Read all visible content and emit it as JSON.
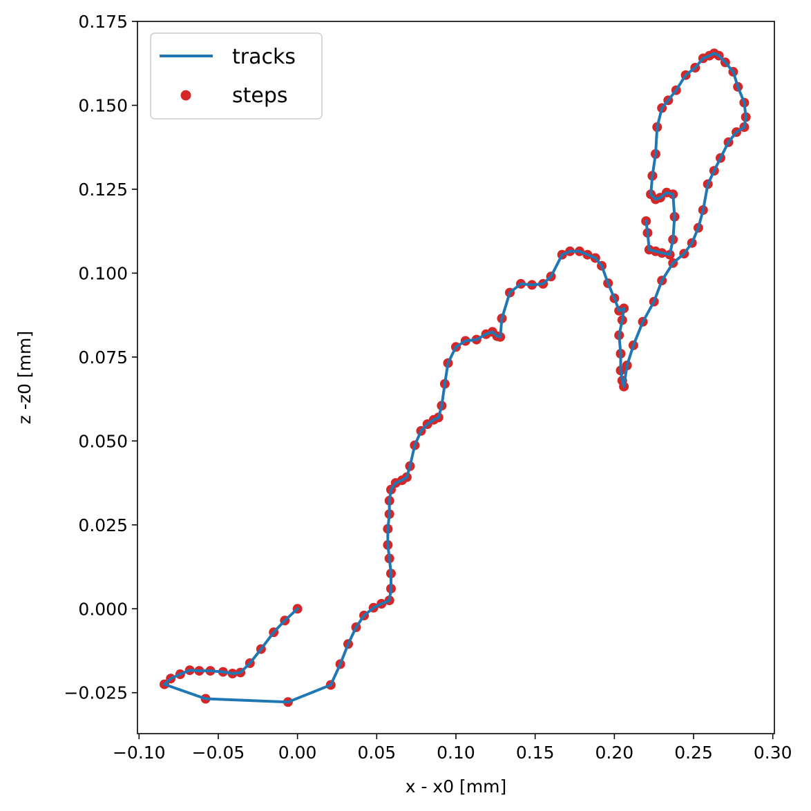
{
  "colors": {
    "track": "#1f77b4",
    "step": "#d62728",
    "axis": "#000000",
    "legend_border": "#cccccc"
  },
  "chart_data": {
    "type": "line",
    "title": "",
    "xlabel": "x - x0 [mm]",
    "ylabel": "z -z0 [mm]",
    "xlim": [
      -0.101,
      0.301
    ],
    "ylim": [
      -0.0372,
      0.175
    ],
    "xticks": [
      -0.1,
      -0.05,
      0.0,
      0.05,
      0.1,
      0.15,
      0.2,
      0.25,
      0.3
    ],
    "xtick_labels": [
      "−0.10",
      "−0.05",
      "0.00",
      "0.05",
      "0.10",
      "0.15",
      "0.20",
      "0.25",
      "0.30"
    ],
    "yticks": [
      -0.025,
      0.0,
      0.025,
      0.05,
      0.075,
      0.1,
      0.125,
      0.15,
      0.175
    ],
    "ytick_labels": [
      "−0.025",
      "0.000",
      "0.025",
      "0.050",
      "0.075",
      "0.100",
      "0.125",
      "0.150",
      "0.175"
    ],
    "grid": false,
    "legend": {
      "position": "top-left",
      "entries": [
        {
          "label": "tracks",
          "kind": "line"
        },
        {
          "label": "steps",
          "kind": "marker"
        }
      ]
    },
    "series": [
      {
        "name": "tracks",
        "kind": "line",
        "points": [
          [
            0.0,
            0.0
          ],
          [
            -0.008,
            -0.0035
          ],
          [
            -0.015,
            -0.007
          ],
          [
            -0.023,
            -0.012
          ],
          [
            -0.03,
            -0.0162
          ],
          [
            -0.036,
            -0.019
          ],
          [
            -0.041,
            -0.0193
          ],
          [
            -0.047,
            -0.0188
          ],
          [
            -0.055,
            -0.0185
          ],
          [
            -0.062,
            -0.0185
          ],
          [
            -0.068,
            -0.0183
          ],
          [
            -0.074,
            -0.0195
          ],
          [
            -0.08,
            -0.0208
          ],
          [
            -0.084,
            -0.0225
          ],
          [
            -0.058,
            -0.0268
          ],
          [
            -0.006,
            -0.0278
          ],
          [
            0.021,
            -0.0227
          ],
          [
            0.027,
            -0.0165
          ],
          [
            0.032,
            -0.0105
          ],
          [
            0.037,
            -0.0055
          ],
          [
            0.042,
            -0.002
          ],
          [
            0.048,
            0.0003
          ],
          [
            0.053,
            0.0015
          ],
          [
            0.058,
            0.0025
          ],
          [
            0.059,
            0.006
          ],
          [
            0.059,
            0.0105
          ],
          [
            0.058,
            0.015
          ],
          [
            0.057,
            0.019
          ],
          [
            0.057,
            0.0238
          ],
          [
            0.058,
            0.0282
          ],
          [
            0.058,
            0.0322
          ],
          [
            0.059,
            0.0355
          ],
          [
            0.062,
            0.0375
          ],
          [
            0.066,
            0.0383
          ],
          [
            0.069,
            0.0392
          ],
          [
            0.071,
            0.0425
          ],
          [
            0.074,
            0.0487
          ],
          [
            0.078,
            0.053
          ],
          [
            0.082,
            0.055
          ],
          [
            0.086,
            0.0563
          ],
          [
            0.089,
            0.057
          ],
          [
            0.091,
            0.0605
          ],
          [
            0.093,
            0.067
          ],
          [
            0.095,
            0.0732
          ],
          [
            0.1,
            0.078
          ],
          [
            0.106,
            0.0798
          ],
          [
            0.113,
            0.0802
          ],
          [
            0.119,
            0.0818
          ],
          [
            0.123,
            0.0825
          ],
          [
            0.126,
            0.0812
          ],
          [
            0.128,
            0.081
          ],
          [
            0.129,
            0.0865
          ],
          [
            0.134,
            0.0942
          ],
          [
            0.141,
            0.0968
          ],
          [
            0.148,
            0.0965
          ],
          [
            0.155,
            0.0968
          ],
          [
            0.16,
            0.099
          ],
          [
            0.167,
            0.1055
          ],
          [
            0.172,
            0.1065
          ],
          [
            0.178,
            0.1065
          ],
          [
            0.183,
            0.1055
          ],
          [
            0.188,
            0.1045
          ],
          [
            0.192,
            0.1022
          ],
          [
            0.196,
            0.097
          ],
          [
            0.2,
            0.0925
          ],
          [
            0.203,
            0.0888
          ],
          [
            0.206,
            0.0895
          ],
          [
            0.205,
            0.086
          ],
          [
            0.203,
            0.0815
          ],
          [
            0.204,
            0.076
          ],
          [
            0.204,
            0.071
          ],
          [
            0.205,
            0.068
          ],
          [
            0.206,
            0.0662
          ],
          [
            0.208,
            0.0725
          ],
          [
            0.212,
            0.0785
          ],
          [
            0.218,
            0.0855
          ],
          [
            0.225,
            0.0915
          ],
          [
            0.23,
            0.0978
          ],
          [
            0.237,
            0.103
          ],
          [
            0.244,
            0.1058
          ],
          [
            0.249,
            0.109
          ],
          [
            0.253,
            0.1135
          ],
          [
            0.256,
            0.1188
          ],
          [
            0.259,
            0.1265
          ],
          [
            0.263,
            0.1305
          ],
          [
            0.267,
            0.1343
          ],
          [
            0.272,
            0.139
          ],
          [
            0.277,
            0.142
          ],
          [
            0.282,
            0.1435
          ],
          [
            0.283,
            0.1465
          ],
          [
            0.282,
            0.1508
          ],
          [
            0.278,
            0.1555
          ],
          [
            0.275,
            0.16
          ],
          [
            0.27,
            0.1628
          ],
          [
            0.266,
            0.1648
          ],
          [
            0.263,
            0.1655
          ],
          [
            0.26,
            0.1648
          ],
          [
            0.256,
            0.164
          ],
          [
            0.251,
            0.1612
          ],
          [
            0.245,
            0.159
          ],
          [
            0.239,
            0.1545
          ],
          [
            0.234,
            0.1515
          ],
          [
            0.23,
            0.1492
          ],
          [
            0.227,
            0.1435
          ],
          [
            0.226,
            0.1355
          ],
          [
            0.224,
            0.129
          ],
          [
            0.223,
            0.1235
          ],
          [
            0.226,
            0.122
          ],
          [
            0.229,
            0.1225
          ],
          [
            0.233,
            0.124
          ],
          [
            0.237,
            0.1235
          ],
          [
            0.238,
            0.1168
          ],
          [
            0.237,
            0.11
          ],
          [
            0.235,
            0.1055
          ],
          [
            0.23,
            0.106
          ],
          [
            0.226,
            0.1065
          ],
          [
            0.222,
            0.107
          ],
          [
            0.221,
            0.112
          ],
          [
            0.22,
            0.1155
          ]
        ]
      },
      {
        "name": "steps",
        "kind": "scatter",
        "same_points_as": "tracks"
      }
    ]
  }
}
